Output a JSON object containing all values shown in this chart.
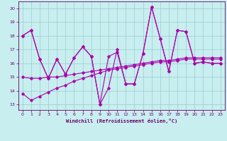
{
  "xlabel": "Windchill (Refroidissement éolien,°C)",
  "bg_color": "#c8eef0",
  "line_color": "#aa00aa",
  "grid_color": "#99cccc",
  "axis_color": "#660066",
  "text_color": "#660066",
  "xlim": [
    -0.5,
    23.5
  ],
  "ylim": [
    12.6,
    20.5
  ],
  "yticks": [
    13,
    14,
    15,
    16,
    17,
    18,
    19,
    20
  ],
  "xticks": [
    0,
    1,
    2,
    3,
    4,
    5,
    6,
    7,
    8,
    9,
    10,
    11,
    12,
    13,
    14,
    15,
    16,
    17,
    18,
    19,
    20,
    21,
    22,
    23
  ],
  "s1": [
    18.0,
    18.4,
    16.3,
    14.9,
    16.3,
    15.2,
    16.4,
    17.2,
    16.5,
    13.0,
    16.5,
    16.8,
    14.5,
    14.5,
    16.7,
    20.1,
    17.8,
    15.4,
    18.4,
    18.3,
    16.0,
    16.1,
    16.0,
    16.0
  ],
  "s2": [
    18.0,
    18.4,
    16.3,
    14.9,
    16.3,
    15.2,
    16.4,
    17.2,
    16.5,
    13.0,
    14.2,
    17.0,
    14.5,
    14.5,
    16.7,
    20.1,
    17.8,
    15.4,
    18.4,
    18.3,
    16.0,
    16.1,
    16.0,
    16.0
  ],
  "s3": [
    15.0,
    14.9,
    14.9,
    15.0,
    15.0,
    15.1,
    15.2,
    15.3,
    15.4,
    15.5,
    15.6,
    15.7,
    15.8,
    15.9,
    16.0,
    16.1,
    16.2,
    16.2,
    16.3,
    16.4,
    16.4,
    16.4,
    16.4,
    16.4
  ],
  "s4": [
    13.8,
    13.3,
    13.6,
    13.9,
    14.2,
    14.4,
    14.7,
    14.9,
    15.1,
    15.3,
    15.5,
    15.6,
    15.7,
    15.8,
    15.9,
    16.0,
    16.1,
    16.1,
    16.2,
    16.3,
    16.3,
    16.3,
    16.3,
    16.3
  ]
}
